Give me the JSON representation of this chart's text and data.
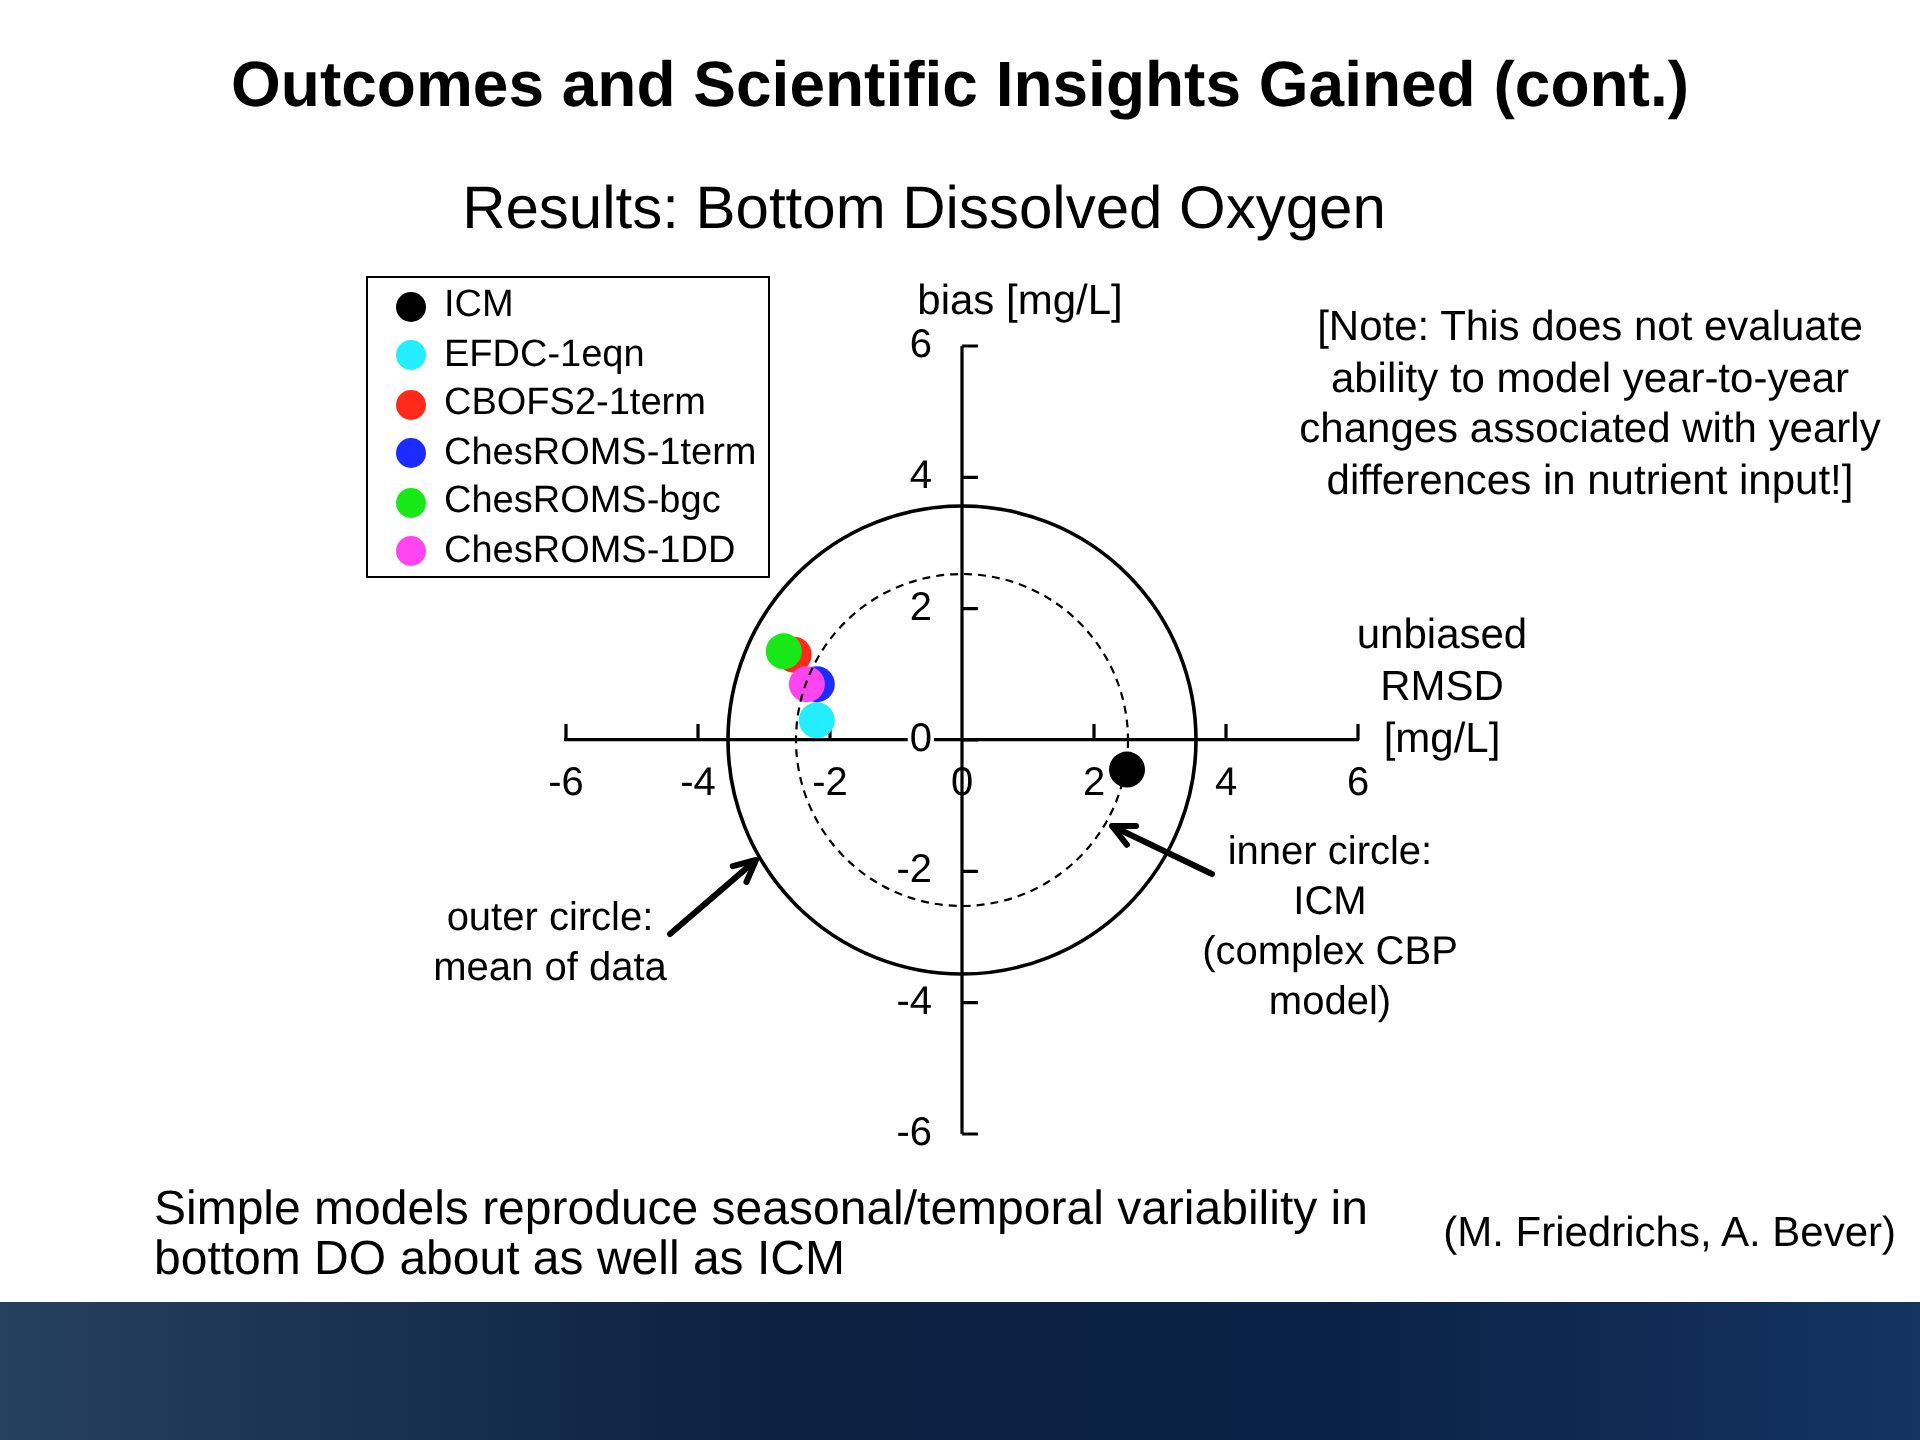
{
  "chart_data": {
    "type": "scatter",
    "title": "Outcomes and Scientific Insights Gained (cont.)",
    "subtitle": "Results: Bottom Dissolved Oxygen",
    "xlabel": "unbiased RMSD [mg/L]",
    "ylabel": "bias [mg/L]",
    "xlim": [
      -6,
      6
    ],
    "ylim": [
      -6,
      6
    ],
    "xticks": [
      -6,
      -4,
      -2,
      0,
      2,
      4,
      6
    ],
    "yticks": [
      -6,
      -4,
      -2,
      0,
      2,
      4,
      6
    ],
    "legend": "top left",
    "marker": "circle",
    "series": [
      {
        "name": "ICM",
        "color": "#000000",
        "x": [
          2.5
        ],
        "values": [
          -0.45
        ]
      },
      {
        "name": "EFDC-1eqn",
        "color": "#22eeff",
        "x": [
          -2.2
        ],
        "values": [
          0.3
        ]
      },
      {
        "name": "CBOFS2-1term",
        "color": "#ff2a1a",
        "x": [
          -2.55
        ],
        "values": [
          1.3
        ]
      },
      {
        "name": "ChesROMS-1term",
        "color": "#1c2cff",
        "x": [
          -2.2
        ],
        "values": [
          0.85
        ]
      },
      {
        "name": "ChesROMS-bgc",
        "color": "#18e818",
        "x": [
          -2.7
        ],
        "values": [
          1.35
        ]
      },
      {
        "name": "ChesROMS-1DD",
        "color": "#ff44f0",
        "x": [
          -2.35
        ],
        "values": [
          0.85
        ]
      }
    ],
    "annotations": [
      "outer circle: mean of data",
      "inner circle: ICM (complex CBP model)",
      "[Note: This does not evaluate ability to model year-to-year changes associated with yearly differences in nutrient input!]",
      "Simple models reproduce seasonal/temporal variability in bottom DO about as well as ICM",
      "(M. Friedrichs, A. Bever)"
    ]
  }
}
